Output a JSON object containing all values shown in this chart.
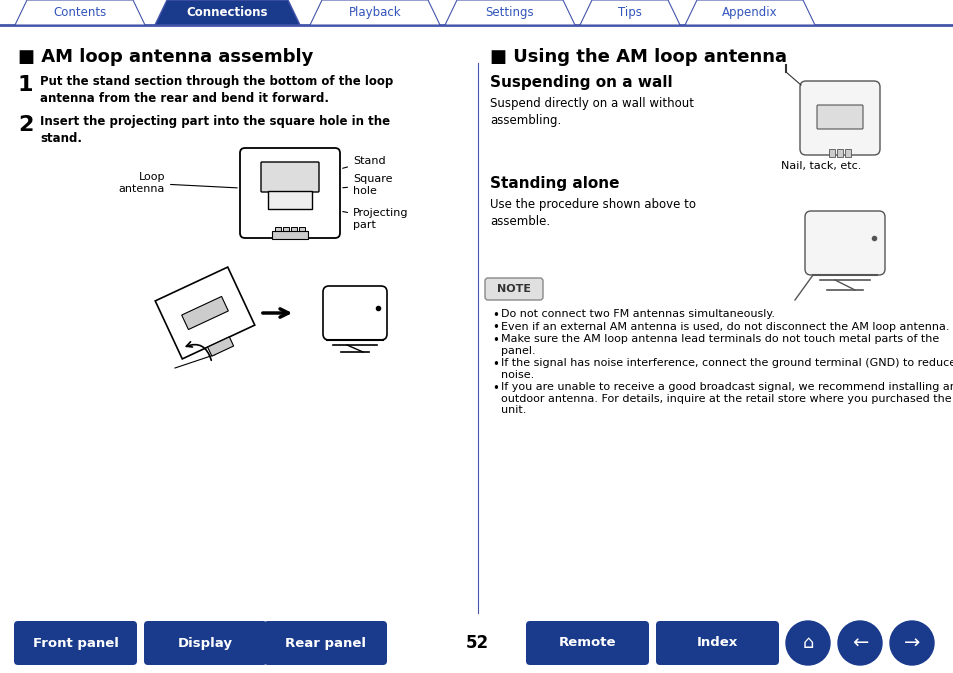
{
  "bg_color": "#ffffff",
  "tab_items": [
    "Contents",
    "Connections",
    "Playback",
    "Settings",
    "Tips",
    "Appendix"
  ],
  "tab_active_idx": 1,
  "tab_active_color": "#1a3a8c",
  "tab_inactive_color": "#ffffff",
  "tab_active_text_color": "#ffffff",
  "tab_inactive_text_color": "#3355bb",
  "tab_border_color": "#4455aa",
  "left_title": "AM loop antenna assembly",
  "left_step1_text": "Put the stand section through the bottom of the loop\nantenna from the rear and bend it forward.",
  "left_step2_text": "Insert the projecting part into the square hole in the\nstand.",
  "right_title": "Using the AM loop antenna",
  "right_sub1": "Suspending on a wall",
  "right_sub1_text": "Suspend directly on a wall without\nassembling.",
  "right_sub1_note": "Nail, tack, etc.",
  "right_sub2": "Standing alone",
  "right_sub2_text": "Use the procedure shown above to\nassemble.",
  "note_label": "NOTE",
  "note_bullets": [
    "Do not connect two FM antennas simultaneously.",
    "Even if an external AM antenna is used, do not disconnect the AM loop antenna.",
    "Make sure the AM loop antenna lead terminals do not touch metal parts of the panel.",
    "If the signal has noise interference, connect the ground terminal (GND) to reduce noise.",
    "If you are unable to receive a good broadcast signal, we recommend installing an outdoor antenna. For details, inquire at the retail store where you purchased the unit."
  ],
  "bottom_buttons": [
    "Front panel",
    "Display",
    "Rear panel",
    "Remote",
    "Index"
  ],
  "bottom_btn_color": "#1a3a8c",
  "bottom_btn_text_color": "#ffffff",
  "page_number": "52",
  "divider_color": "#4455aa",
  "tab_line_color": "#4455aa"
}
